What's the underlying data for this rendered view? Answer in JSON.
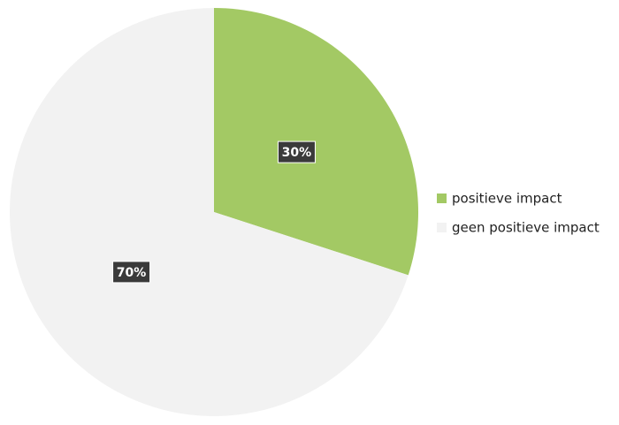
{
  "chart_data": {
    "type": "pie",
    "categories": [
      "positieve impact",
      "geen positieve impact"
    ],
    "values": [
      30,
      70
    ],
    "value_labels": [
      "30%",
      "70%"
    ],
    "colors": [
      "#a3c964",
      "#f2f2f2"
    ],
    "legend": "right"
  }
}
